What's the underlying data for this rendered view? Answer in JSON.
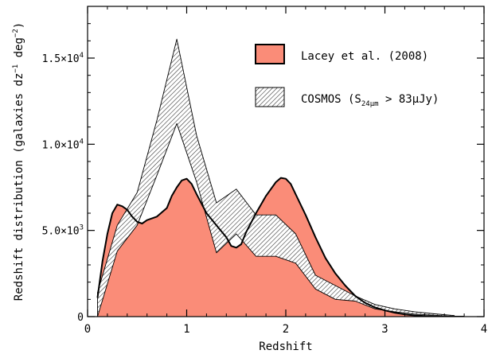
{
  "chart_data": {
    "type": "area",
    "xlabel": "Redshift",
    "ylabel_main": "Redshift distribution (galaxies dz",
    "ylabel_sup1": "−1",
    "ylabel_mid": " deg",
    "ylabel_sup2": "−2",
    "ylabel_end": ")",
    "xlim": [
      0,
      4
    ],
    "ylim": [
      0,
      18000
    ],
    "legend_position": "top-right",
    "x_ticks": [
      {
        "value": 0,
        "label": "0"
      },
      {
        "value": 1,
        "label": "1"
      },
      {
        "value": 2,
        "label": "2"
      },
      {
        "value": 3,
        "label": "3"
      },
      {
        "value": 4,
        "label": "4"
      }
    ],
    "y_ticks": [
      {
        "value": 0,
        "mantissa": "0",
        "exp": ""
      },
      {
        "value": 5000,
        "mantissa": "5.0×10",
        "exp": "3"
      },
      {
        "value": 10000,
        "mantissa": "1.0×10",
        "exp": "4"
      },
      {
        "value": 15000,
        "mantissa": "1.5×10",
        "exp": "4"
      }
    ],
    "series": [
      {
        "name": "Lacey et al. (2008)",
        "kind": "filled-line",
        "fill": "#fa8c78",
        "stroke": "#000000",
        "x": [
          0.1,
          0.15,
          0.2,
          0.25,
          0.3,
          0.35,
          0.4,
          0.45,
          0.5,
          0.55,
          0.6,
          0.7,
          0.8,
          0.85,
          0.9,
          0.95,
          1.0,
          1.05,
          1.1,
          1.2,
          1.3,
          1.4,
          1.45,
          1.5,
          1.55,
          1.6,
          1.7,
          1.8,
          1.9,
          1.95,
          2.0,
          2.05,
          2.1,
          2.2,
          2.3,
          2.4,
          2.5,
          2.6,
          2.7,
          2.8,
          2.9,
          3.0,
          3.1,
          3.2,
          3.3,
          3.4,
          3.5,
          3.6,
          3.7,
          3.8
        ],
        "y": [
          1100,
          3200,
          4800,
          6000,
          6500,
          6400,
          6200,
          5800,
          5500,
          5400,
          5600,
          5800,
          6300,
          7000,
          7500,
          7900,
          8000,
          7700,
          7100,
          6000,
          5300,
          4600,
          4100,
          4000,
          4200,
          4900,
          6000,
          7000,
          7800,
          8050,
          8000,
          7700,
          7100,
          5900,
          4600,
          3400,
          2500,
          1800,
          1200,
          800,
          530,
          360,
          220,
          130,
          70,
          35,
          15,
          5,
          2,
          0
        ]
      },
      {
        "name": "COSMOS (S",
        "name_sub": "24μm",
        "name_end": " > 83μJy)",
        "kind": "hatched-band",
        "fill": "#ffffff",
        "stroke": "#000000",
        "x": [
          0.1,
          0.3,
          0.5,
          0.7,
          0.9,
          1.1,
          1.3,
          1.5,
          1.7,
          1.9,
          2.1,
          2.3,
          2.5,
          2.7,
          2.9,
          3.1,
          3.3,
          3.5,
          3.7
        ],
        "upper": [
          1400,
          5300,
          7200,
          11400,
          16100,
          10500,
          6600,
          7400,
          5900,
          5900,
          4800,
          2400,
          1800,
          1200,
          700,
          450,
          280,
          160,
          60
        ],
        "lower": [
          0,
          3800,
          5300,
          8200,
          11200,
          7800,
          3700,
          4800,
          3500,
          3500,
          3100,
          1600,
          1000,
          900,
          450,
          280,
          150,
          80,
          10
        ]
      }
    ]
  }
}
